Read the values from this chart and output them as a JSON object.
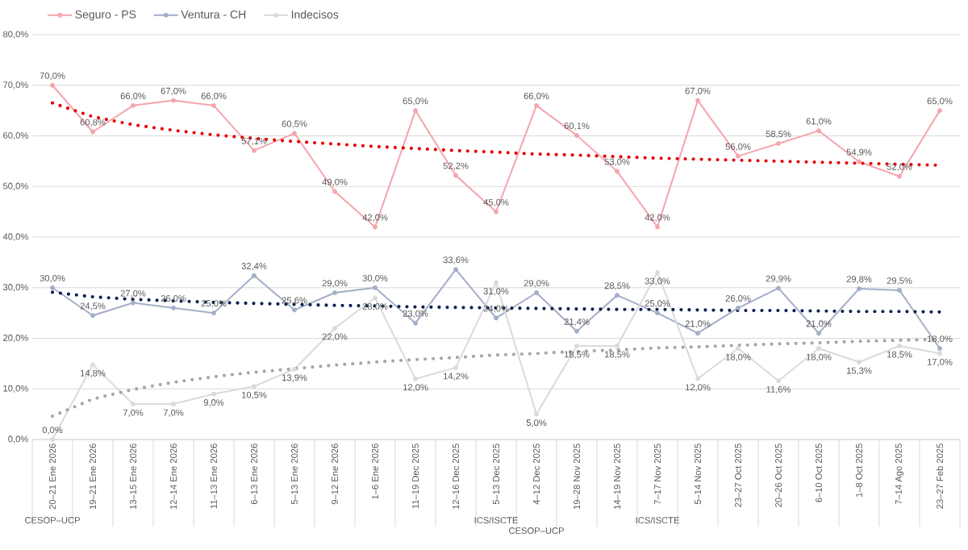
{
  "chart_data": {
    "type": "line",
    "categories": [
      "20–21 Ene 2026",
      "19–21 Ene 2026",
      "13–15 Ene 2026",
      "12–14 Ene 2026",
      "11–13 Ene 2026",
      "6–13 Ene 2026",
      "5–13 Ene 2026",
      "9–12 Ene 2026",
      "1–6 Ene 2026",
      "11–19 Dec 2025",
      "12–16 Dec 2025",
      "5–13 Dec 2025",
      "4–12 Dec 2025",
      "19–28 Nov 2025",
      "14–19 Nov 2025",
      "7–17 Nov 2025",
      "5–14 Nov 2025",
      "23–27 Oct 2025",
      "20–26 Oct 2025",
      "6–10 Oct 2025",
      "1–8 Oct 2025",
      "7–14 Ago 2025",
      "23–27 Feb 2025"
    ],
    "series": [
      {
        "name": "Seguro - PS",
        "color": "#f4a5ac",
        "values": [
          70.0,
          60.8,
          66.0,
          67.0,
          66.0,
          57.1,
          60.5,
          49.0,
          42.0,
          65.0,
          52.2,
          45.0,
          66.0,
          60.1,
          53.0,
          42.0,
          67.0,
          56.0,
          58.5,
          61.0,
          54.9,
          52.0,
          65.0
        ],
        "value_labels": [
          "70,0%",
          "60,8%",
          "66,0%",
          "67,0%",
          "66,0%",
          "57,1%",
          "60,5%",
          "49,0%",
          "42,0%",
          "65,0%",
          "52,2%",
          "45,0%",
          "66,0%",
          "60,1%",
          "53,0%",
          "42,0%",
          "67,0%",
          "56,0%",
          "58,5%",
          "61,0%",
          "54,9%",
          "52,0%",
          "65,0%"
        ]
      },
      {
        "name": "Ventura - CH",
        "color": "#a3aec8",
        "values": [
          30.0,
          24.5,
          27.0,
          26.0,
          25.0,
          32.4,
          25.6,
          29.0,
          30.0,
          23.0,
          33.6,
          24.0,
          29.0,
          21.4,
          28.5,
          25.0,
          21.0,
          26.0,
          29.9,
          21.0,
          29.8,
          29.5,
          18.0
        ],
        "value_labels": [
          "30,0%",
          "24,5%",
          "27,0%",
          "26,0%",
          "25,0%",
          "32,4%",
          "25,6%",
          "29,0%",
          "30,0%",
          "23,0%",
          "33,6%",
          "24,0%",
          "29,0%",
          "21,4%",
          "28,5%",
          "25,0%",
          "21,0%",
          "26,0%",
          "29,9%",
          "21,0%",
          "29,8%",
          "29,5%",
          "18,0%"
        ]
      },
      {
        "name": "Indecisos",
        "color": "#dadada",
        "values": [
          0.0,
          14.8,
          7.0,
          7.0,
          9.0,
          10.5,
          13.9,
          22.0,
          28.0,
          12.0,
          14.2,
          31.0,
          5.0,
          18.5,
          18.5,
          33.0,
          12.0,
          18.0,
          11.6,
          18.0,
          15.3,
          18.5,
          17.0
        ],
        "value_labels": [
          "0,0%",
          "14,8%",
          "7,0%",
          "7,0%",
          "9,0%",
          "10,5%",
          "13,9%",
          "22,0%",
          "28,0%",
          "12,0%",
          "14,2%",
          "31,0%",
          "5,0%",
          "18,5%",
          "18,5%",
          "33,0%",
          "12,0%",
          "18,0%",
          "11,6%",
          "18,0%",
          "15,3%",
          "18,5%",
          "17,0%"
        ]
      },
      {
        "color": "#e60000",
        "line_style": "dotted",
        "marker": "none",
        "values": [
          66.5,
          63.8,
          62.2,
          61.1,
          60.2,
          59.5,
          58.9,
          58.4,
          57.9,
          57.5,
          57.1,
          56.8,
          56.4,
          56.2,
          55.9,
          55.6,
          55.4,
          55.2,
          55.0,
          54.8,
          54.6,
          54.4,
          54.2
        ]
      },
      {
        "color": "#0c1f50",
        "line_style": "dotted",
        "marker": "none",
        "values": [
          29.1,
          28.2,
          27.7,
          27.4,
          27.1,
          26.9,
          26.7,
          26.5,
          26.4,
          26.2,
          26.1,
          26.0,
          25.9,
          25.8,
          25.7,
          25.7,
          25.6,
          25.5,
          25.5,
          25.4,
          25.3,
          25.3,
          25.2
        ]
      },
      {
        "color": "#a6a6a6",
        "line_style": "dotted",
        "marker": "none",
        "values": [
          4.6,
          8.0,
          9.9,
          11.3,
          12.4,
          13.3,
          14.0,
          14.7,
          15.3,
          15.8,
          16.2,
          16.7,
          17.0,
          17.4,
          17.7,
          18.1,
          18.3,
          18.6,
          18.9,
          19.1,
          19.4,
          19.6,
          19.8
        ]
      }
    ],
    "ylim": [
      0,
      80
    ],
    "yticks": [
      {
        "value": 0,
        "label": "0,0%"
      },
      {
        "value": 10,
        "label": "10,0%"
      },
      {
        "value": 20,
        "label": "20,0%"
      },
      {
        "value": 30,
        "label": "30,0%"
      },
      {
        "value": 40,
        "label": "40,0%"
      },
      {
        "value": 50,
        "label": "50,0%"
      },
      {
        "value": 60,
        "label": "60,0%"
      },
      {
        "value": 70,
        "label": "70,0%"
      },
      {
        "value": 80,
        "label": "80,0%"
      }
    ],
    "grid": "y",
    "legend": "top left",
    "marker": "circle",
    "line_style": "solid",
    "annotations": [
      "CESOP–UCP",
      "ICS/ISCTE",
      "CESOP–UCP",
      "ICS/ISCTE"
    ]
  }
}
